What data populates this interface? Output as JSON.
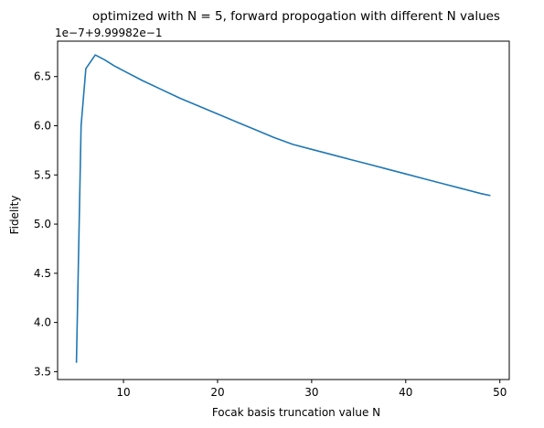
{
  "chart_data": {
    "type": "line",
    "title": "optimized with N = 5, forward propogation with different N values",
    "xlabel": "Focak basis truncation value N",
    "ylabel": "Fidelity",
    "y_offset_label": "1e−7+9.99982e−1",
    "xlim": [
      3,
      51
    ],
    "ylim": [
      3.42,
      6.86
    ],
    "x_ticks": [
      10,
      20,
      30,
      40,
      50
    ],
    "x_tick_labels": [
      "10",
      "20",
      "30",
      "40",
      "50"
    ],
    "y_ticks": [
      3.5,
      4.0,
      4.5,
      5.0,
      5.5,
      6.0,
      6.5
    ],
    "y_tick_labels": [
      "3.5",
      "4.0",
      "4.5",
      "5.0",
      "5.5",
      "6.0",
      "6.5"
    ],
    "grid": false,
    "line_color": "#1f77b4",
    "series": [
      {
        "x": [
          5,
          5.5,
          6,
          7,
          8,
          9,
          10,
          12,
          14,
          16,
          18,
          20,
          22,
          24,
          26,
          28,
          30,
          32,
          34,
          36,
          38,
          40,
          42,
          44,
          46,
          48,
          49
        ],
        "values": [
          3.59,
          6.0,
          6.58,
          6.72,
          6.67,
          6.61,
          6.56,
          6.46,
          6.37,
          6.28,
          6.2,
          6.12,
          6.04,
          5.96,
          5.88,
          5.81,
          5.76,
          5.71,
          5.66,
          5.61,
          5.56,
          5.51,
          5.46,
          5.41,
          5.36,
          5.31,
          5.29
        ]
      }
    ]
  }
}
